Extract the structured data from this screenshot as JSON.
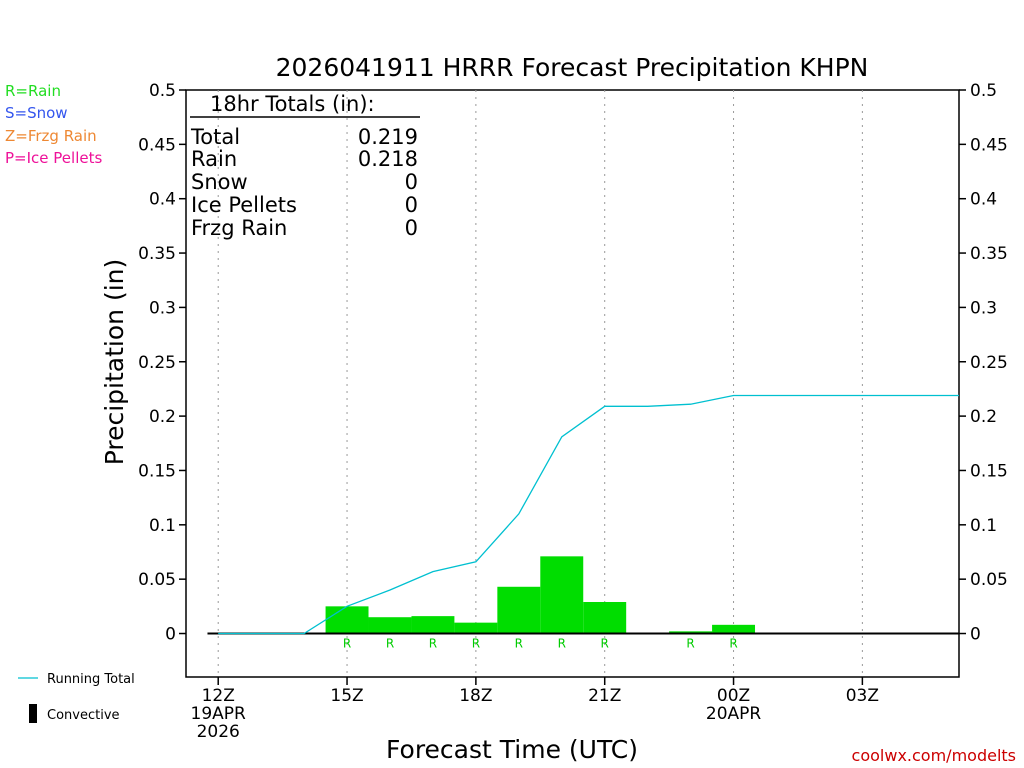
{
  "chart_data": {
    "type": "bar",
    "title": "2026041911 HRRR Forecast Precipitation KHPN",
    "xlabel": "Forecast Time (UTC)",
    "ylabel": "Precipitation (in)",
    "ylim": [
      -0.04,
      0.5
    ],
    "yticks": [
      0,
      0.05,
      0.1,
      0.15,
      0.2,
      0.25,
      0.3,
      0.35,
      0.4,
      0.45,
      0.5
    ],
    "ytick_labels": [
      "0",
      "0.05",
      "0.1",
      "0.15",
      "0.2",
      "0.25",
      "0.3",
      "0.35",
      "0.4",
      "0.45",
      "0.5"
    ],
    "xlim_hours": [
      11.25,
      29.25
    ],
    "xticks": [
      {
        "hour": 12,
        "lines": [
          "12Z",
          "19APR",
          "2026"
        ]
      },
      {
        "hour": 15,
        "lines": [
          "15Z"
        ]
      },
      {
        "hour": 18,
        "lines": [
          "18Z"
        ]
      },
      {
        "hour": 21,
        "lines": [
          "21Z"
        ]
      },
      {
        "hour": 24,
        "lines": [
          "00Z",
          "20APR"
        ]
      },
      {
        "hour": 27,
        "lines": [
          "03Z"
        ]
      }
    ],
    "bars": [
      {
        "start": 14.5,
        "end": 15.5,
        "value": 0.025,
        "ptype": "R"
      },
      {
        "start": 15.5,
        "end": 16.5,
        "value": 0.015,
        "ptype": "R"
      },
      {
        "start": 16.5,
        "end": 17.5,
        "value": 0.016,
        "ptype": "R"
      },
      {
        "start": 17.5,
        "end": 18.5,
        "value": 0.01,
        "ptype": "R"
      },
      {
        "start": 18.5,
        "end": 19.5,
        "value": 0.043,
        "ptype": "R"
      },
      {
        "start": 19.5,
        "end": 20.5,
        "value": 0.071,
        "ptype": "R"
      },
      {
        "start": 20.5,
        "end": 21.5,
        "value": 0.029,
        "ptype": "R"
      },
      {
        "start": 22.5,
        "end": 23.5,
        "value": 0.002,
        "ptype": "R"
      },
      {
        "start": 23.5,
        "end": 24.5,
        "value": 0.008,
        "ptype": "R"
      }
    ],
    "series": [
      {
        "name": "Running Total",
        "x": [
          12,
          13,
          14,
          15,
          16,
          17,
          18,
          19,
          20,
          21,
          22,
          23,
          24,
          25,
          26,
          27,
          28,
          29.25
        ],
        "values": [
          0,
          0,
          0,
          0.025,
          0.04,
          0.057,
          0.066,
          0.11,
          0.181,
          0.209,
          0.209,
          0.211,
          0.219,
          0.219,
          0.219,
          0.219,
          0.219,
          0.219
        ]
      }
    ],
    "totals_box": {
      "heading": "18hr Totals (in):",
      "rows": [
        {
          "label": "Total",
          "value": "0.219"
        },
        {
          "label": "Rain",
          "value": "0.218"
        },
        {
          "label": "Snow",
          "value": "0"
        },
        {
          "label": "Ice Pellets",
          "value": "0"
        },
        {
          "label": "Frzg Rain",
          "value": "0"
        }
      ]
    },
    "ptype_legend": [
      {
        "text": "R=Rain",
        "color": "#22dd22"
      },
      {
        "text": "S=Snow",
        "color": "#3355ee"
      },
      {
        "text": "Z=Frzg Rain",
        "color": "#ee8833"
      },
      {
        "text": "P=Ice Pellets",
        "color": "#ee1199"
      }
    ],
    "colors": {
      "bar": "#00dd00",
      "running_total": "#00c0d0",
      "rain_marker": "#00cc00",
      "credit": "#cc0000"
    }
  },
  "legend": {
    "running_total_label": "Running Total",
    "convective_label": "Convective"
  },
  "credit": "coolwx.com/modelts"
}
